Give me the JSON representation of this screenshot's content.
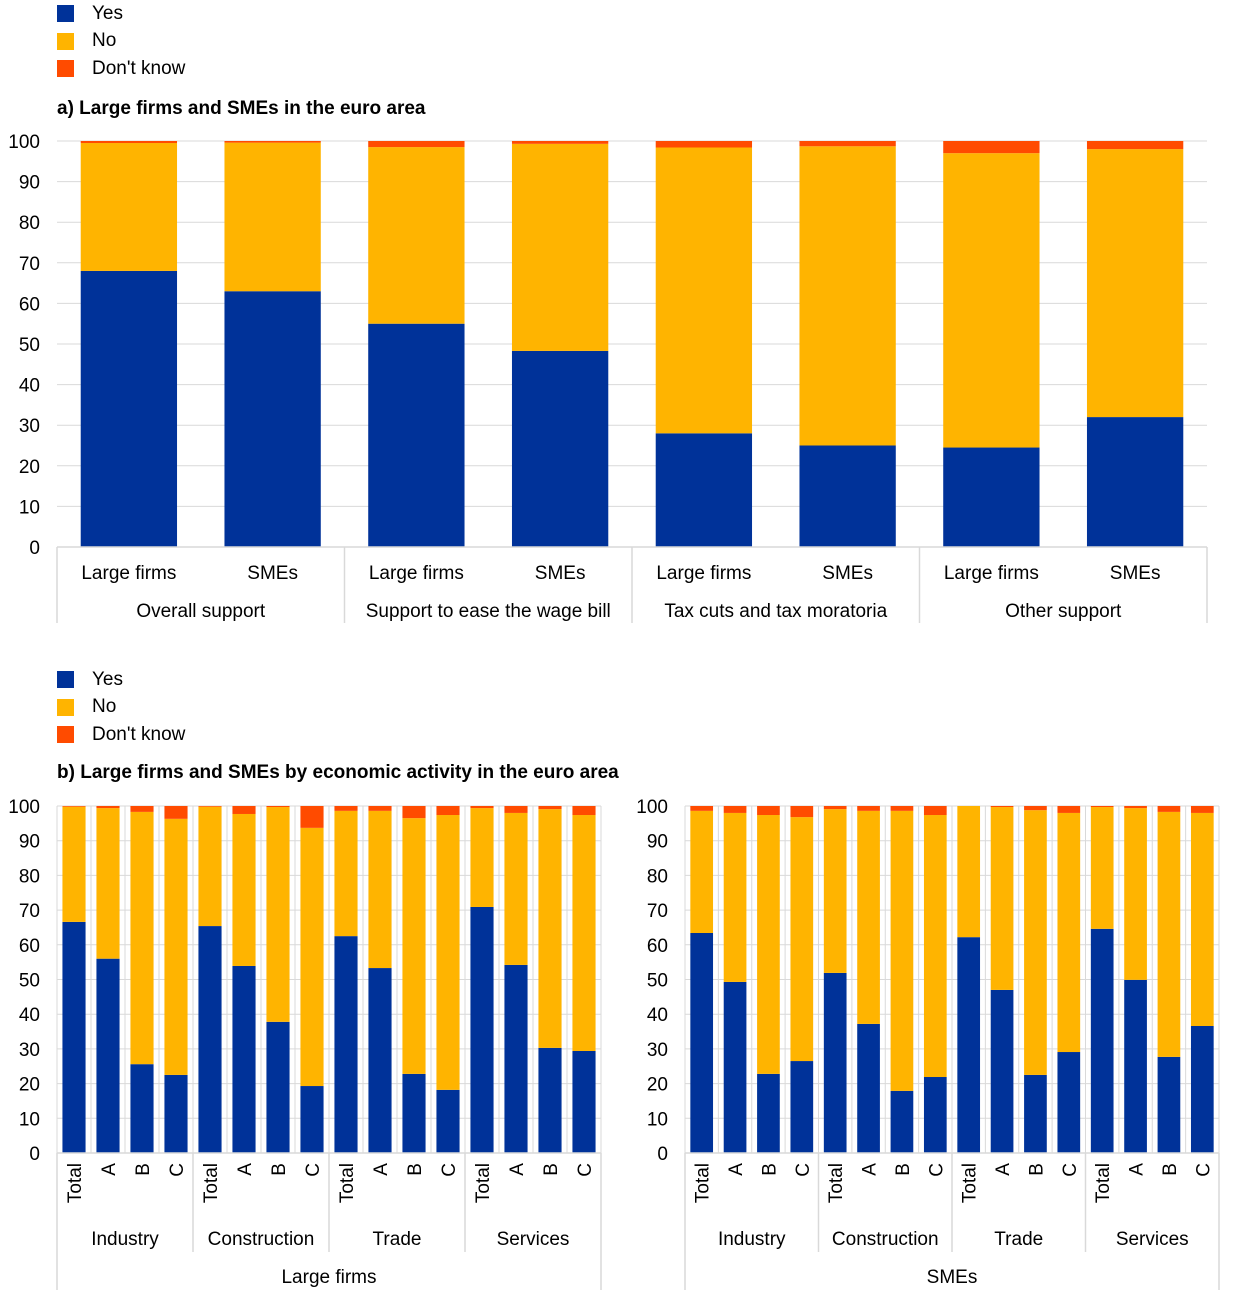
{
  "colors": {
    "Yes": "#003299",
    "No": "#FFB400",
    "Don't know": "#FF4B00"
  },
  "chart_data": [
    {
      "type": "bar",
      "stacked": true,
      "title": "a) Large firms and SMEs in the euro area",
      "legend": [
        "Yes",
        "No",
        "Don't know"
      ],
      "legend_placement": "top-left",
      "ylim": [
        0,
        100
      ],
      "yticks": [
        "0",
        "10",
        "20",
        "30",
        "40",
        "50",
        "60",
        "70",
        "80",
        "90",
        "100"
      ],
      "groups": [
        "Overall support",
        "Support to ease the wage bill",
        "Tax cuts and tax moratoria",
        "Other support"
      ],
      "categories": [
        "Large firms",
        "SMEs",
        "Large firms",
        "SMEs",
        "Large firms",
        "SMEs",
        "Large firms",
        "SMEs"
      ],
      "series": [
        {
          "name": "Yes",
          "values": [
            68,
            63,
            55,
            48.3,
            28,
            25,
            24.5,
            32
          ]
        },
        {
          "name": "No",
          "values": [
            31.5,
            36.6,
            43.5,
            51,
            70.4,
            73.7,
            72.5,
            66
          ]
        },
        {
          "name": "Don't know",
          "values": [
            0.5,
            0.4,
            1.5,
            0.7,
            1.6,
            1.3,
            3,
            2
          ]
        }
      ]
    },
    {
      "type": "bar",
      "stacked": true,
      "title": "b) Large firms and SMEs by economic activity in the euro area",
      "legend": [
        "Yes",
        "No",
        "Don't know"
      ],
      "legend_placement": "top-left",
      "ylim": [
        0,
        100
      ],
      "yticks": [
        "0",
        "10",
        "20",
        "30",
        "40",
        "50",
        "60",
        "70",
        "80",
        "90",
        "100"
      ],
      "panels": [
        {
          "label": "Large firms",
          "groups": [
            "Industry",
            "Construction",
            "Trade",
            "Services"
          ],
          "categories": [
            "Total",
            "A",
            "B",
            "C",
            "Total",
            "A",
            "B",
            "C",
            "Total",
            "A",
            "B",
            "C",
            "Total",
            "A",
            "B",
            "C"
          ],
          "series": [
            {
              "name": "Yes",
              "values": [
                66.6,
                56,
                25.6,
                22.5,
                65.4,
                53.9,
                37.8,
                19.3,
                62.5,
                53.3,
                22.8,
                18.2,
                70.9,
                54.2,
                30.3,
                29.4
              ]
            },
            {
              "name": "No",
              "values": [
                33.2,
                43.4,
                72.7,
                73.8,
                34.4,
                43.8,
                61.9,
                74.4,
                36.1,
                45.3,
                73.7,
                79.2,
                28.5,
                43.8,
                68.8,
                68
              ]
            },
            {
              "name": "Don't know",
              "values": [
                0.2,
                0.6,
                1.7,
                3.7,
                0.2,
                2.3,
                0.3,
                6.3,
                1.4,
                1.4,
                3.5,
                2.6,
                0.6,
                2,
                0.9,
                2.6
              ]
            }
          ]
        },
        {
          "label": "SMEs",
          "groups": [
            "Industry",
            "Construction",
            "Trade",
            "Services"
          ],
          "categories": [
            "Total",
            "A",
            "B",
            "C",
            "Total",
            "A",
            "B",
            "C",
            "Total",
            "A",
            "B",
            "C",
            "Total",
            "A",
            "B",
            "C"
          ],
          "series": [
            {
              "name": "Yes",
              "values": [
                63.4,
                49.3,
                22.8,
                26.5,
                51.9,
                37.2,
                17.9,
                21.9,
                62.2,
                47,
                22.5,
                29.1,
                64.6,
                49.9,
                27.7,
                36.6
              ]
            },
            {
              "name": "No",
              "values": [
                35.2,
                48.7,
                74.6,
                70.3,
                47.2,
                61.4,
                80.7,
                75.5,
                37.8,
                52.7,
                76.3,
                68.9,
                35.1,
                49.5,
                70.6,
                61.4
              ]
            },
            {
              "name": "Don't know",
              "values": [
                1.4,
                2,
                2.6,
                3.2,
                0.9,
                1.4,
                1.4,
                2.6,
                0,
                0.3,
                1.2,
                2,
                0.3,
                0.6,
                1.7,
                2
              ]
            }
          ]
        }
      ]
    }
  ]
}
